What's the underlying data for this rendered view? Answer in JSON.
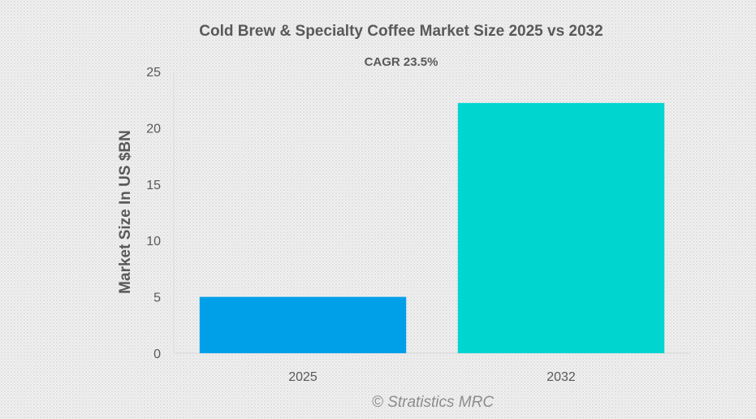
{
  "chart_data": {
    "type": "bar",
    "title": "Cold Brew & Specialty Coffee Market Size 2025 vs 2032",
    "subtitle": "CAGR 23.5%",
    "xlabel": "",
    "ylabel": "Market Size In US $BN",
    "categories": [
      "2025",
      "2032"
    ],
    "values": [
      5.0,
      22.2
    ],
    "colors": [
      "#00a0e9",
      "#00d5d0"
    ],
    "ylim": [
      0,
      25
    ],
    "yticks": [
      "0",
      "5",
      "10",
      "15",
      "20",
      "25"
    ],
    "grid": false,
    "legend": "none"
  },
  "watermark": "© Stratistics MRC"
}
